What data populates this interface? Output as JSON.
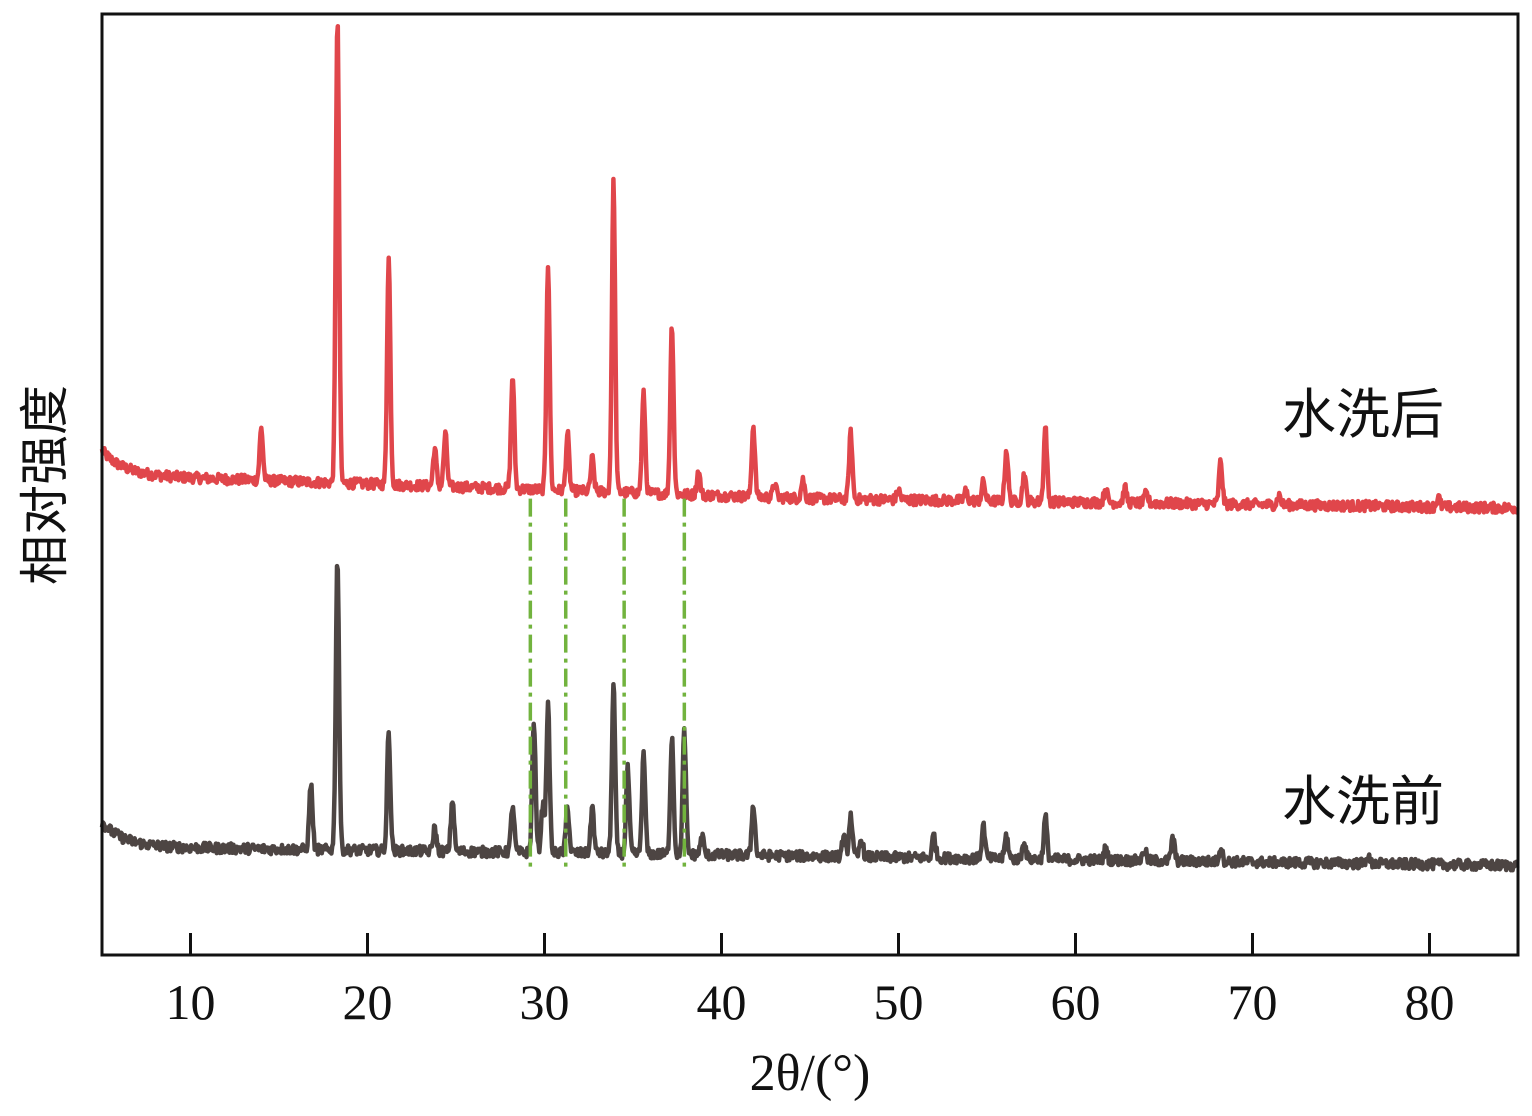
{
  "chart_data": {
    "type": "line",
    "title": "",
    "xlabel": "2θ/(°)",
    "ylabel": "相对强度",
    "xlim": [
      5,
      85
    ],
    "ylim": [
      0,
      100
    ],
    "xticks": [
      10,
      20,
      30,
      40,
      50,
      60,
      70,
      80
    ],
    "y_ticks_shown": false,
    "grid": false,
    "legend": "none",
    "series": [
      {
        "name": "水洗后",
        "color": "#e0464b",
        "baseline": {
          "start": 51,
          "mid": 48.5,
          "end": 47.5
        },
        "peaks": [
          [
            14.0,
            5.5
          ],
          [
            18.3,
            49.5
          ],
          [
            21.2,
            24
          ],
          [
            23.8,
            4
          ],
          [
            24.4,
            5.5
          ],
          [
            28.2,
            12
          ],
          [
            30.2,
            24
          ],
          [
            31.3,
            6
          ],
          [
            32.7,
            3.5
          ],
          [
            33.9,
            33
          ],
          [
            35.6,
            10.5
          ],
          [
            37.2,
            18
          ],
          [
            38.7,
            2.5
          ],
          [
            41.8,
            7.5
          ],
          [
            43.0,
            1.5
          ],
          [
            44.6,
            2
          ],
          [
            47.3,
            7
          ],
          [
            50.0,
            1
          ],
          [
            53.8,
            1
          ],
          [
            54.8,
            2
          ],
          [
            56.1,
            5.5
          ],
          [
            57.1,
            3
          ],
          [
            58.3,
            8
          ],
          [
            61.7,
            1.5
          ],
          [
            62.8,
            1.5
          ],
          [
            64.0,
            1
          ],
          [
            68.2,
            4.5
          ],
          [
            71.5,
            1
          ],
          [
            80.5,
            1
          ]
        ]
      },
      {
        "name": "水洗前",
        "color": "#4d4543",
        "baseline": {
          "start": 11.5,
          "mid": 10.5,
          "end": 9.5
        },
        "peaks": [
          [
            16.8,
            7
          ],
          [
            18.3,
            31
          ],
          [
            21.2,
            12.5
          ],
          [
            23.8,
            2.5
          ],
          [
            24.8,
            5.5
          ],
          [
            28.2,
            5
          ],
          [
            29.4,
            14
          ],
          [
            29.9,
            5
          ],
          [
            30.2,
            15.5
          ],
          [
            31.3,
            5
          ],
          [
            32.7,
            5
          ],
          [
            33.9,
            18
          ],
          [
            34.7,
            9
          ],
          [
            35.6,
            10.5
          ],
          [
            37.2,
            12.5
          ],
          [
            37.9,
            13
          ],
          [
            38.9,
            2
          ],
          [
            41.8,
            5.5
          ],
          [
            46.9,
            2
          ],
          [
            47.3,
            4.5
          ],
          [
            47.9,
            2
          ],
          [
            52.0,
            2.5
          ],
          [
            54.8,
            3.5
          ],
          [
            56.1,
            2.5
          ],
          [
            57.1,
            2
          ],
          [
            58.3,
            4.5
          ],
          [
            61.7,
            1.2
          ],
          [
            63.9,
            1.2
          ],
          [
            65.5,
            2.5
          ],
          [
            68.2,
            1.5
          ],
          [
            76.5,
            0.8
          ]
        ]
      }
    ],
    "reference_lines": {
      "style": "dash-dot",
      "color": "#72b33e",
      "x": [
        29.2,
        31.2,
        34.5,
        37.9
      ],
      "y_range": [
        9,
        48.5
      ]
    }
  }
}
